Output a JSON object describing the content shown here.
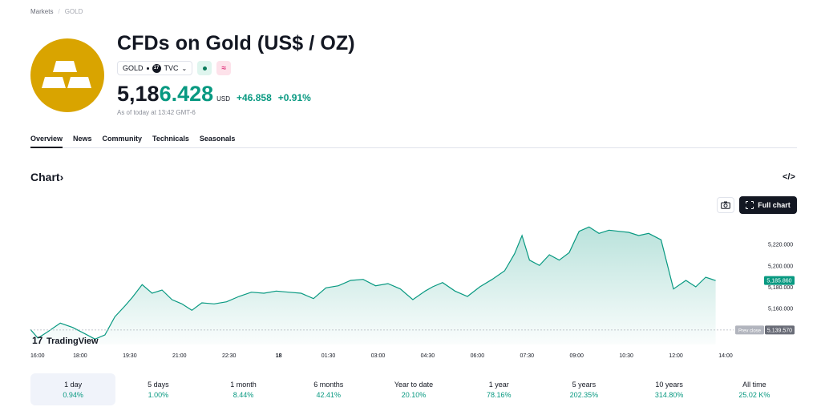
{
  "breadcrumb": {
    "items": [
      "Markets",
      "GOLD"
    ]
  },
  "header": {
    "title": "CFDs on Gold (US$ / OZ)",
    "symbol": "GOLD",
    "exchange": "TVC",
    "cfd_badge": "≈"
  },
  "quote": {
    "price_main": "5,18",
    "price_highlight": "6.428",
    "currency": "USD",
    "change": "+46.858",
    "change_pct": "+0.91%",
    "as_of": "As of today at 13:42 GMT-6"
  },
  "tabs": [
    {
      "label": "Overview",
      "active": true
    },
    {
      "label": "News",
      "active": false
    },
    {
      "label": "Community",
      "active": false
    },
    {
      "label": "Technicals",
      "active": false
    },
    {
      "label": "Seasonals",
      "active": false
    }
  ],
  "chart_section": {
    "heading": "Chart",
    "heading_chevron": "›",
    "embed_icon": "</>",
    "full_chart_label": "Full chart",
    "watermark": "TradingView"
  },
  "chart_data": {
    "type": "area",
    "x_ticks": [
      "16:00",
      "18:00",
      "19:30",
      "21:00",
      "22:30",
      "18",
      "01:30",
      "03:00",
      "04:30",
      "06:00",
      "07:30",
      "09:00",
      "10:30",
      "12:00",
      "14:00"
    ],
    "y_ticks": [
      "5,220.000",
      "5,200.000",
      "5,180.000",
      "5,160.000"
    ],
    "y_tick_values": [
      5220,
      5200,
      5180,
      5160
    ],
    "ylim": [
      5126,
      5240
    ],
    "x_range": [
      0,
      14
    ],
    "line_color": "#089981",
    "fill_color": "#089981",
    "last_price_label": "5,185.860",
    "last_price": 5185.86,
    "prev_close_label": "Prev close",
    "prev_close_value_label": "5,139.570",
    "prev_close": 5139.57,
    "x": [
      0,
      0.15,
      0.35,
      0.6,
      0.85,
      1.1,
      1.3,
      1.5,
      1.7,
      1.9,
      2.05,
      2.25,
      2.45,
      2.65,
      2.85,
      3.05,
      3.25,
      3.45,
      3.7,
      3.95,
      4.2,
      4.45,
      4.7,
      4.95,
      5.2,
      5.45,
      5.7,
      5.95,
      6.2,
      6.45,
      6.7,
      6.95,
      7.2,
      7.45,
      7.7,
      7.95,
      8.1,
      8.3,
      8.55,
      8.8,
      9.05,
      9.3,
      9.55,
      9.75,
      9.9,
      10.05,
      10.25,
      10.45,
      10.65,
      10.85,
      11.05,
      11.25,
      11.45,
      11.65,
      11.85,
      12.05,
      12.25,
      12.45,
      12.7,
      12.95,
      13.2,
      13.4,
      13.6,
      13.8
    ],
    "values": [
      5140,
      5132,
      5138,
      5146,
      5142,
      5136,
      5131,
      5135,
      5152,
      5162,
      5170,
      5182,
      5174,
      5177,
      5168,
      5164,
      5158,
      5165,
      5164,
      5166,
      5171,
      5175,
      5174,
      5176,
      5175,
      5174,
      5169,
      5179,
      5181,
      5186,
      5187,
      5181,
      5183,
      5178,
      5168,
      5176,
      5180,
      5184,
      5176,
      5171,
      5180,
      5187,
      5195,
      5211,
      5228,
      5205,
      5200,
      5210,
      5205,
      5212,
      5232,
      5236,
      5230,
      5233,
      5232,
      5231,
      5228,
      5230,
      5224,
      5178,
      5186,
      5180,
      5189,
      5185.86
    ]
  },
  "ranges": [
    {
      "label": "1 day",
      "value": "0.94%",
      "active": true
    },
    {
      "label": "5 days",
      "value": "1.00%",
      "active": false
    },
    {
      "label": "1 month",
      "value": "8.44%",
      "active": false
    },
    {
      "label": "6 months",
      "value": "42.41%",
      "active": false
    },
    {
      "label": "Year to date",
      "value": "20.10%",
      "active": false
    },
    {
      "label": "1 year",
      "value": "78.16%",
      "active": false
    },
    {
      "label": "5 years",
      "value": "202.35%",
      "active": false
    },
    {
      "label": "10 years",
      "value": "314.80%",
      "active": false
    },
    {
      "label": "All time",
      "value": "25.02 K%",
      "active": false
    }
  ]
}
